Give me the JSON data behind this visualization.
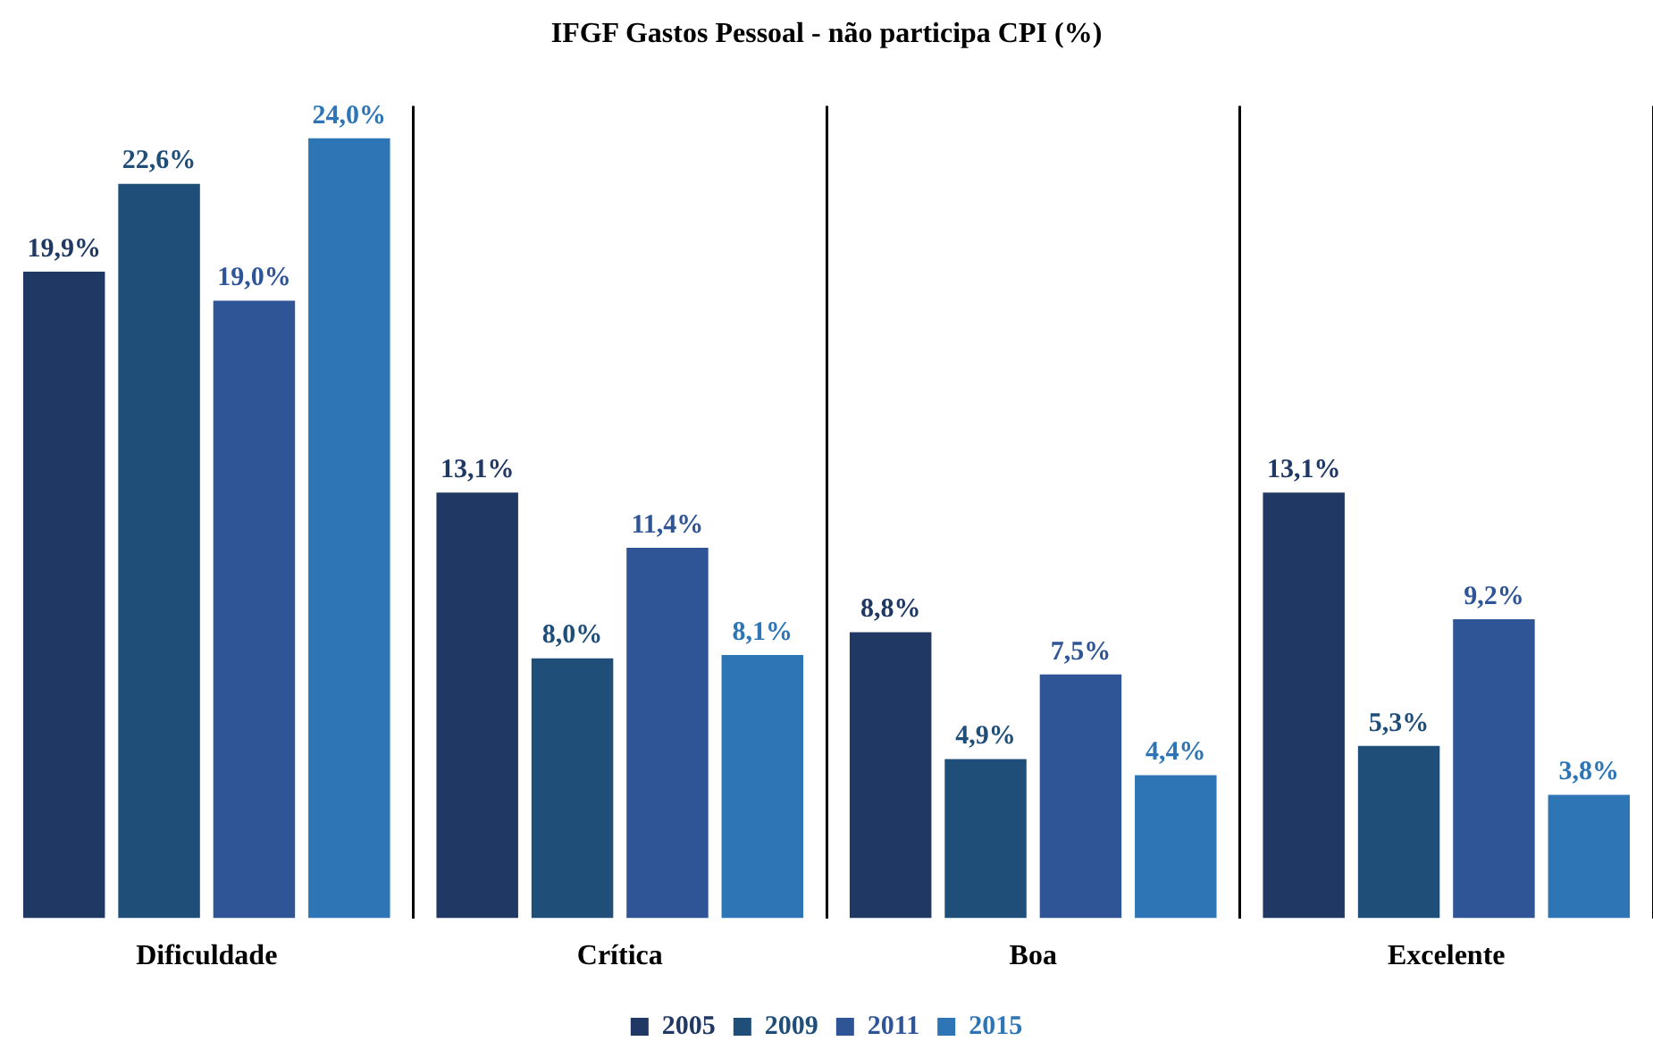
{
  "chart_data": {
    "type": "bar",
    "title": "IFGF Gastos Pessoal - não participa CPI (%)",
    "categories": [
      "Dificuldade",
      "Crítica",
      "Boa",
      "Excelente"
    ],
    "series": [
      {
        "name": "2005",
        "color": "#203864",
        "values": [
          19.9,
          13.1,
          8.8,
          13.1
        ],
        "value_labels": [
          "19,9%",
          "13,1%",
          "8,8%",
          "13,1%"
        ]
      },
      {
        "name": "2009",
        "color": "#1f4e79",
        "values": [
          22.6,
          8.0,
          4.9,
          5.3
        ],
        "value_labels": [
          "22,6%",
          "8,0%",
          "4,9%",
          "5,3%"
        ]
      },
      {
        "name": "2011",
        "color": "#2f5597",
        "values": [
          19.0,
          11.4,
          7.5,
          9.2
        ],
        "value_labels": [
          "19,0%",
          "11,4%",
          "7,5%",
          "9,2%"
        ]
      },
      {
        "name": "2015",
        "color": "#2e75b6",
        "values": [
          24.0,
          8.1,
          4.4,
          3.8
        ],
        "value_labels": [
          "24,0%",
          "8,1%",
          "4,4%",
          "3,8%"
        ]
      }
    ],
    "grid": "x",
    "legend": "bottom"
  }
}
